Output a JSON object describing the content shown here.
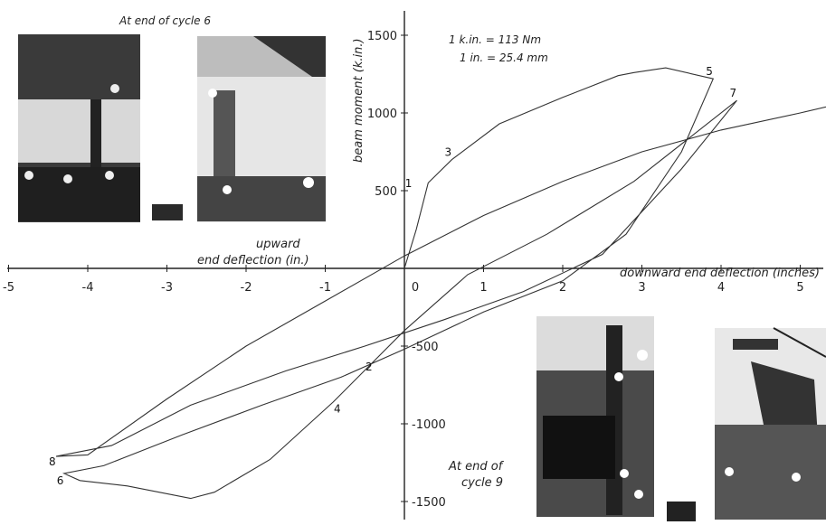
{
  "chart_data": {
    "type": "line",
    "title": "",
    "xlabel_right": "downward end deflection (inches)",
    "xlabel_left_line1": "upward",
    "xlabel_left_line2": "end deflection (in.)",
    "ylabel": "beam moment (k.in.)",
    "xlim": [
      -5,
      5.5
    ],
    "ylim": [
      -1550,
      1700
    ],
    "x_ticks": [
      -5,
      -4,
      -3,
      -2,
      -1,
      0,
      1,
      2,
      3,
      4,
      5
    ],
    "y_ticks": [
      -1500,
      -1000,
      -500,
      500,
      1000,
      1500
    ],
    "grid": false,
    "series": [
      {
        "x": [
          0,
          0.15,
          0.3,
          0.6,
          1.2,
          2.0,
          2.7,
          2.9,
          3.3,
          3.9,
          3.5,
          2.8,
          2.0,
          1.0,
          0,
          -0.8,
          -1.8,
          -2.8,
          -3.8,
          -4.3,
          -4.1,
          -3.5,
          -2.7,
          -2.4,
          -1.7,
          -0.9,
          0,
          0.8,
          1.8,
          2.9,
          4.2,
          3.5,
          2.5,
          1.5,
          0.5,
          -0.5,
          -1.5,
          -2.7,
          -3.7,
          -4.4,
          -4.0,
          -3.0,
          -2.0,
          -1.0,
          0,
          1.0,
          2.0,
          3.0,
          4.0,
          5.0,
          5.5
        ],
        "y": [
          0,
          250,
          550,
          700,
          930,
          1100,
          1240,
          1260,
          1290,
          1220,
          750,
          220,
          -80,
          -280,
          -520,
          -700,
          -880,
          -1070,
          -1270,
          -1320,
          -1365,
          -1400,
          -1480,
          -1440,
          -1230,
          -860,
          -400,
          -40,
          220,
          560,
          1080,
          640,
          90,
          -150,
          -330,
          -500,
          -660,
          -880,
          -1140,
          -1210,
          -1200,
          -840,
          -500,
          -210,
          80,
          340,
          560,
          750,
          890,
          1000,
          1060
        ]
      }
    ],
    "points": [
      {
        "label": "1",
        "x": 0.1,
        "y": 500
      },
      {
        "label": "2",
        "x": -0.4,
        "y": -600
      },
      {
        "label": "3",
        "x": 0.6,
        "y": 700
      },
      {
        "label": "4",
        "x": -0.8,
        "y": -870
      },
      {
        "label": "5",
        "x": 3.9,
        "y": 1220
      },
      {
        "label": "6",
        "x": -4.3,
        "y": -1330
      },
      {
        "label": "7",
        "x": 4.2,
        "y": 1080
      },
      {
        "label": "8",
        "x": -4.4,
        "y": -1210
      }
    ],
    "annotations": {
      "conv1": "1 k.in. = 113 Nm",
      "conv2": "1 in. = 25.4 mm",
      "photo_top_caption": "At end of cycle 6",
      "photo_bottom_caption_line1": "At end of",
      "photo_bottom_caption_line2": "cycle 9"
    }
  }
}
